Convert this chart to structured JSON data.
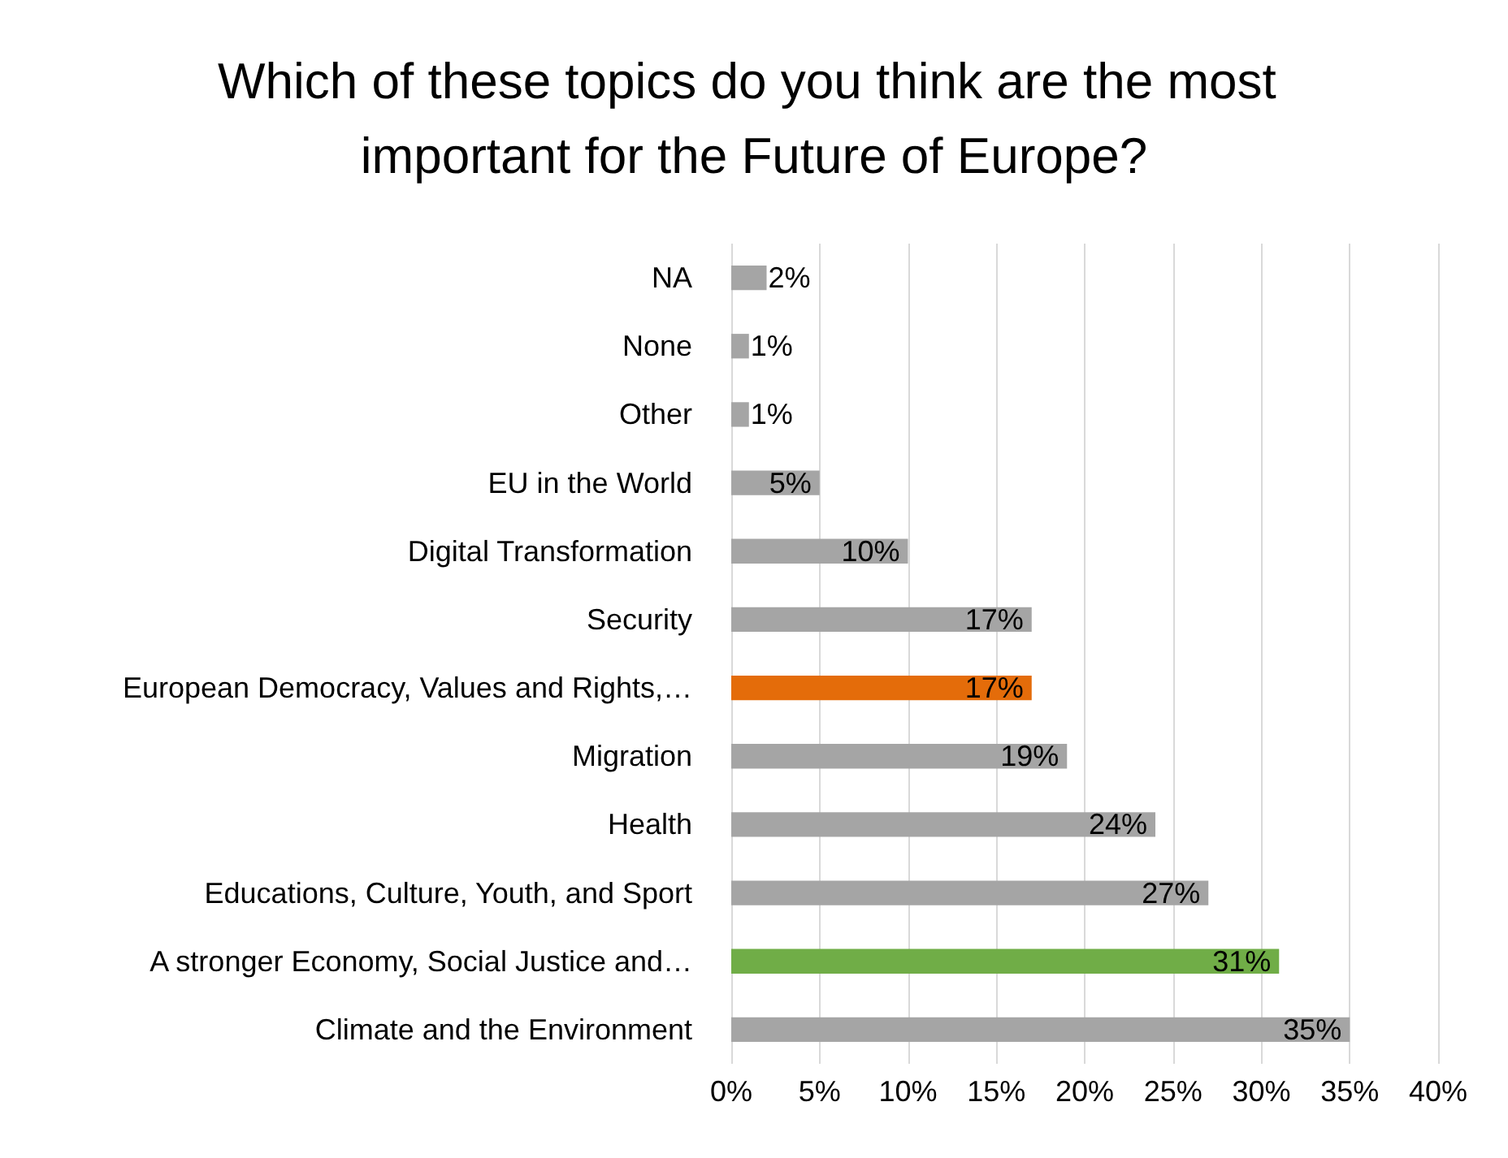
{
  "chart_data": {
    "type": "bar",
    "orientation": "horizontal",
    "title": "Which of these topics do you think are the most important for the Future of Europe?",
    "categories": [
      "NA",
      "None",
      "Other",
      "EU in the World",
      "Digital Transformation",
      "Security",
      "European Democracy, Values and Rights,…",
      "Migration",
      "Health",
      "Educations, Culture, Youth, and Sport",
      "A stronger Economy, Social Justice and…",
      "Climate and the Environment"
    ],
    "values": [
      2,
      1,
      1,
      5,
      10,
      17,
      17,
      19,
      24,
      27,
      31,
      35
    ],
    "value_labels": [
      "2%",
      "1%",
      "1%",
      "5%",
      "10%",
      "17%",
      "17%",
      "19%",
      "24%",
      "27%",
      "31%",
      "35%"
    ],
    "colors": [
      "#a5a5a5",
      "#a5a5a5",
      "#a5a5a5",
      "#a5a5a5",
      "#a5a5a5",
      "#a5a5a5",
      "#e46c0a",
      "#a5a5a5",
      "#a5a5a5",
      "#a5a5a5",
      "#70ad47",
      "#a5a5a5"
    ],
    "xlim": [
      0,
      40
    ],
    "xticks": [
      {
        "value": 0,
        "label": "0%"
      },
      {
        "value": 5,
        "label": "5%"
      },
      {
        "value": 10,
        "label": "10%"
      },
      {
        "value": 15,
        "label": "15%"
      },
      {
        "value": 20,
        "label": "20%"
      },
      {
        "value": 25,
        "label": "25%"
      },
      {
        "value": 30,
        "label": "30%"
      },
      {
        "value": 35,
        "label": "35%"
      },
      {
        "value": 40,
        "label": "40%"
      }
    ],
    "grid": "x"
  }
}
